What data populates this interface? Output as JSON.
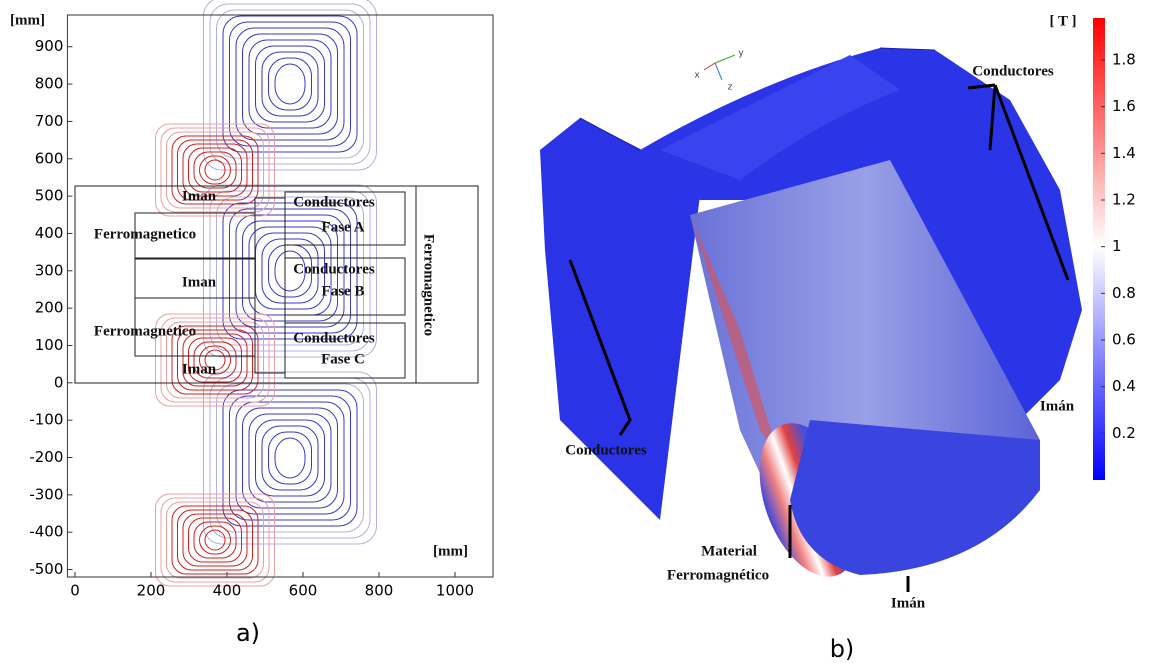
{
  "chart_data": [
    {
      "type": "contour",
      "xlabel": "[mm]",
      "ylabel": "[mm]",
      "xlim": [
        -20,
        1100
      ],
      "ylim": [
        -520,
        985
      ],
      "xticks": [
        0,
        200,
        400,
        600,
        800,
        1000
      ],
      "yticks": [
        -500,
        -400,
        -300,
        -200,
        -100,
        0,
        100,
        200,
        300,
        400,
        500,
        600,
        700,
        800,
        900
      ],
      "annotations": [
        "Iman",
        "Ferromagnetico",
        "Iman",
        "Ferromagnetico",
        "Iman",
        "Conductores",
        "Fase A",
        "Conductores",
        "Fase B",
        "Conductores",
        "Fase C",
        "Ferromagnetico"
      ],
      "caption": "a)"
    },
    {
      "type": "colorbar",
      "label": "[ T ]",
      "ylim": [
        0,
        1.98
      ],
      "yticks": [
        0.2,
        0.4,
        0.6,
        0.8,
        1,
        1.2,
        1.4,
        1.6,
        1.8
      ],
      "colors": [
        "#0000ff",
        "#ffffff",
        "#ff0000"
      ],
      "axes_labels": [
        "x",
        "y",
        "z"
      ],
      "annotations": [
        "Conductores",
        "Imán",
        "Conductores",
        "Material",
        "Ferromagnético",
        "Imán"
      ],
      "caption": "b)"
    }
  ]
}
